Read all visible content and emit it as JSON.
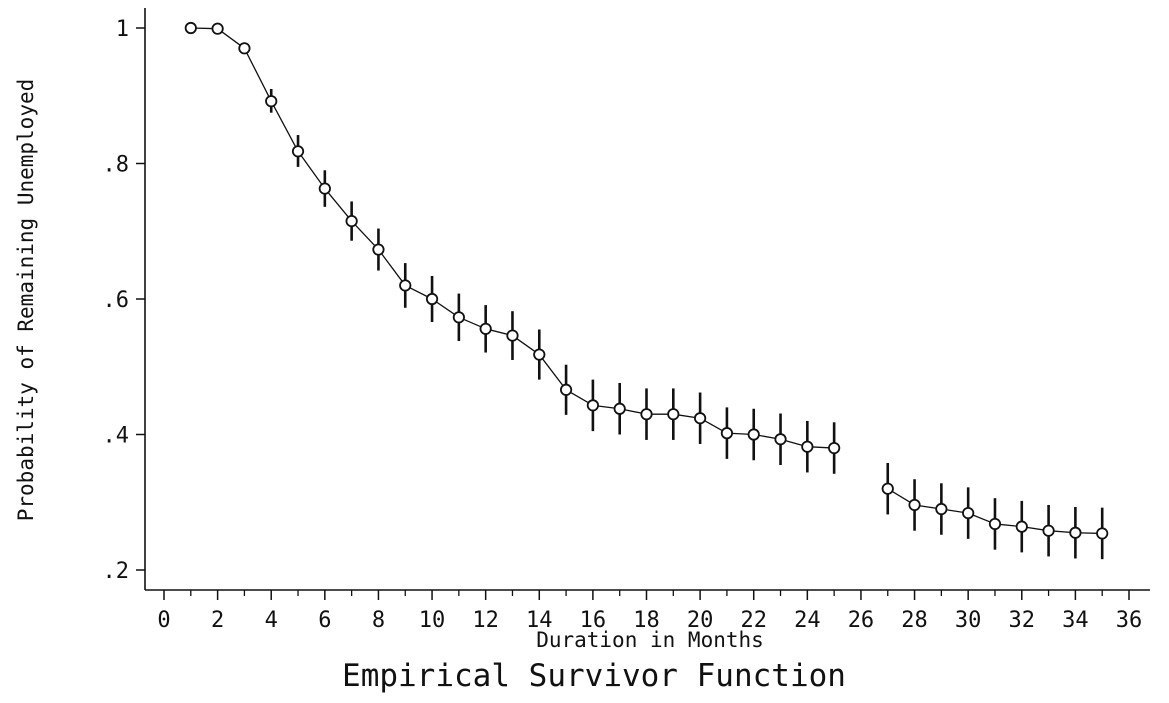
{
  "chart_data": {
    "type": "line",
    "title": "Empirical Survivor Function",
    "xlabel": "Duration in Months",
    "ylabel": "Probability of Remaining Unemployed",
    "xlim": [
      0,
      36
    ],
    "ylim": [
      0.2,
      1.0
    ],
    "xticks": [
      0,
      2,
      4,
      6,
      8,
      10,
      12,
      14,
      16,
      18,
      20,
      22,
      24,
      26,
      28,
      30,
      32,
      34,
      36
    ],
    "yticks": [
      {
        "value": 0.2,
        "label": ".2"
      },
      {
        "value": 0.4,
        "label": ".4"
      },
      {
        "value": 0.6,
        "label": ".6"
      },
      {
        "value": 0.8,
        "label": ".8"
      },
      {
        "value": 1.0,
        "label": "1"
      }
    ],
    "grid": false,
    "legend": "none",
    "series": [
      {
        "marker": "circle",
        "points": [
          {
            "x": 1,
            "y": 1.0,
            "lo": 1.0,
            "hi": 1.0
          },
          {
            "x": 2,
            "y": 0.999,
            "lo": 0.999,
            "hi": 0.999
          },
          {
            "x": 3,
            "y": 0.97,
            "lo": 0.962,
            "hi": 0.978
          },
          {
            "x": 4,
            "y": 0.892,
            "lo": 0.875,
            "hi": 0.91
          },
          {
            "x": 5,
            "y": 0.818,
            "lo": 0.795,
            "hi": 0.842
          },
          {
            "x": 6,
            "y": 0.763,
            "lo": 0.736,
            "hi": 0.79
          },
          {
            "x": 7,
            "y": 0.715,
            "lo": 0.686,
            "hi": 0.744
          },
          {
            "x": 8,
            "y": 0.673,
            "lo": 0.642,
            "hi": 0.704
          },
          {
            "x": 9,
            "y": 0.62,
            "lo": 0.587,
            "hi": 0.653
          },
          {
            "x": 10,
            "y": 0.6,
            "lo": 0.566,
            "hi": 0.634
          },
          {
            "x": 11,
            "y": 0.573,
            "lo": 0.538,
            "hi": 0.608
          },
          {
            "x": 12,
            "y": 0.556,
            "lo": 0.521,
            "hi": 0.591
          },
          {
            "x": 13,
            "y": 0.546,
            "lo": 0.51,
            "hi": 0.582
          },
          {
            "x": 14,
            "y": 0.518,
            "lo": 0.481,
            "hi": 0.555
          },
          {
            "x": 15,
            "y": 0.466,
            "lo": 0.429,
            "hi": 0.503
          },
          {
            "x": 16,
            "y": 0.443,
            "lo": 0.405,
            "hi": 0.481
          },
          {
            "x": 17,
            "y": 0.438,
            "lo": 0.4,
            "hi": 0.476
          },
          {
            "x": 18,
            "y": 0.43,
            "lo": 0.392,
            "hi": 0.468
          },
          {
            "x": 19,
            "y": 0.43,
            "lo": 0.392,
            "hi": 0.468
          },
          {
            "x": 20,
            "y": 0.424,
            "lo": 0.386,
            "hi": 0.462
          },
          {
            "x": 21,
            "y": 0.402,
            "lo": 0.364,
            "hi": 0.44
          },
          {
            "x": 22,
            "y": 0.4,
            "lo": 0.362,
            "hi": 0.438
          },
          {
            "x": 23,
            "y": 0.393,
            "lo": 0.355,
            "hi": 0.431
          },
          {
            "x": 24,
            "y": 0.382,
            "lo": 0.344,
            "hi": 0.42
          },
          {
            "x": 25,
            "y": 0.38,
            "lo": 0.342,
            "hi": 0.418
          },
          {
            "x": 27,
            "y": 0.32,
            "lo": 0.282,
            "hi": 0.358
          },
          {
            "x": 28,
            "y": 0.296,
            "lo": 0.258,
            "hi": 0.334
          },
          {
            "x": 29,
            "y": 0.29,
            "lo": 0.252,
            "hi": 0.328
          },
          {
            "x": 30,
            "y": 0.284,
            "lo": 0.246,
            "hi": 0.322
          },
          {
            "x": 31,
            "y": 0.268,
            "lo": 0.23,
            "hi": 0.306
          },
          {
            "x": 32,
            "y": 0.264,
            "lo": 0.226,
            "hi": 0.302
          },
          {
            "x": 33,
            "y": 0.258,
            "lo": 0.22,
            "hi": 0.296
          },
          {
            "x": 34,
            "y": 0.255,
            "lo": 0.217,
            "hi": 0.293
          },
          {
            "x": 35,
            "y": 0.254,
            "lo": 0.216,
            "hi": 0.292
          }
        ]
      }
    ]
  }
}
